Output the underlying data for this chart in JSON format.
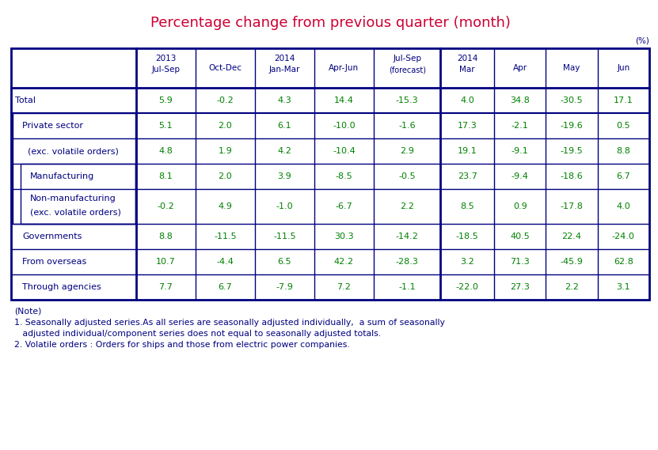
{
  "title": "Percentage change from previous quarter (month)",
  "title_color": "#cc0033",
  "title_fontsize": 13,
  "pct_label": "(%)",
  "col_headers": [
    {
      "line1": "2013",
      "line2": "Jul-Sep",
      "line3": ""
    },
    {
      "line1": "",
      "line2": "Oct-Dec",
      "line3": ""
    },
    {
      "line1": "2014",
      "line2": "Jan-Mar",
      "line3": ""
    },
    {
      "line1": "",
      "line2": "Apr-Jun",
      "line3": ""
    },
    {
      "line1": "",
      "line2": "Jul-Sep",
      "line3": "(forecast)"
    },
    {
      "line1": "2014",
      "line2": "Mar",
      "line3": ""
    },
    {
      "line1": "",
      "line2": "Apr",
      "line3": ""
    },
    {
      "line1": "",
      "line2": "May",
      "line3": ""
    },
    {
      "line1": "",
      "line2": "Jun",
      "line3": ""
    }
  ],
  "rows": [
    {
      "label": "Total",
      "indent": 0,
      "values": [
        "5.9",
        "-0.2",
        "4.3",
        "14.4",
        "-15.3",
        "4.0",
        "34.8",
        "-30.5",
        "17.1"
      ],
      "bold": false
    },
    {
      "label": "Private sector",
      "indent": 1,
      "values": [
        "5.1",
        "2.0",
        "6.1",
        "-10.0",
        "-1.6",
        "17.3",
        "-2.1",
        "-19.6",
        "0.5"
      ],
      "bold": false
    },
    {
      "label": "  (exc. volatile orders)",
      "indent": 1,
      "values": [
        "4.8",
        "1.9",
        "4.2",
        "-10.4",
        "2.9",
        "19.1",
        "-9.1",
        "-19.5",
        "8.8"
      ],
      "bold": false
    },
    {
      "label": "Manufacturing",
      "indent": 2,
      "values": [
        "8.1",
        "2.0",
        "3.9",
        "-8.5",
        "-0.5",
        "23.7",
        "-9.4",
        "-18.6",
        "6.7"
      ],
      "bold": false
    },
    {
      "label": "Non-manufacturing\n(exc. volatile orders)",
      "indent": 2,
      "values": [
        "-0.2",
        "4.9",
        "-1.0",
        "-6.7",
        "2.2",
        "8.5",
        "0.9",
        "-17.8",
        "4.0"
      ],
      "bold": false
    },
    {
      "label": "Governments",
      "indent": 1,
      "values": [
        "8.8",
        "-11.5",
        "-11.5",
        "30.3",
        "-14.2",
        "-18.5",
        "40.5",
        "22.4",
        "-24.0"
      ],
      "bold": false
    },
    {
      "label": "From overseas",
      "indent": 1,
      "values": [
        "10.7",
        "-4.4",
        "6.5",
        "42.2",
        "-28.3",
        "3.2",
        "71.3",
        "-45.9",
        "62.8"
      ],
      "bold": false
    },
    {
      "label": "Through agencies",
      "indent": 1,
      "values": [
        "7.7",
        "6.7",
        "-7.9",
        "7.2",
        "-1.1",
        "-22.0",
        "27.3",
        "2.2",
        "3.1"
      ],
      "bold": false
    }
  ],
  "notes": [
    "(Note)",
    "1. Seasonally adjusted series.As all series are seasonally adjusted individually,  a sum of seasonally",
    "   adjusted individual/component series does not equal to seasonally adjusted totals.",
    "2. Volatile orders : Orders for ships and those from electric power companies."
  ],
  "header_text_color": "#000080",
  "label_color": "#000080",
  "value_color": "#008000",
  "border_color": "#000080",
  "note_color": "#000080",
  "bg_color": "#ffffff"
}
